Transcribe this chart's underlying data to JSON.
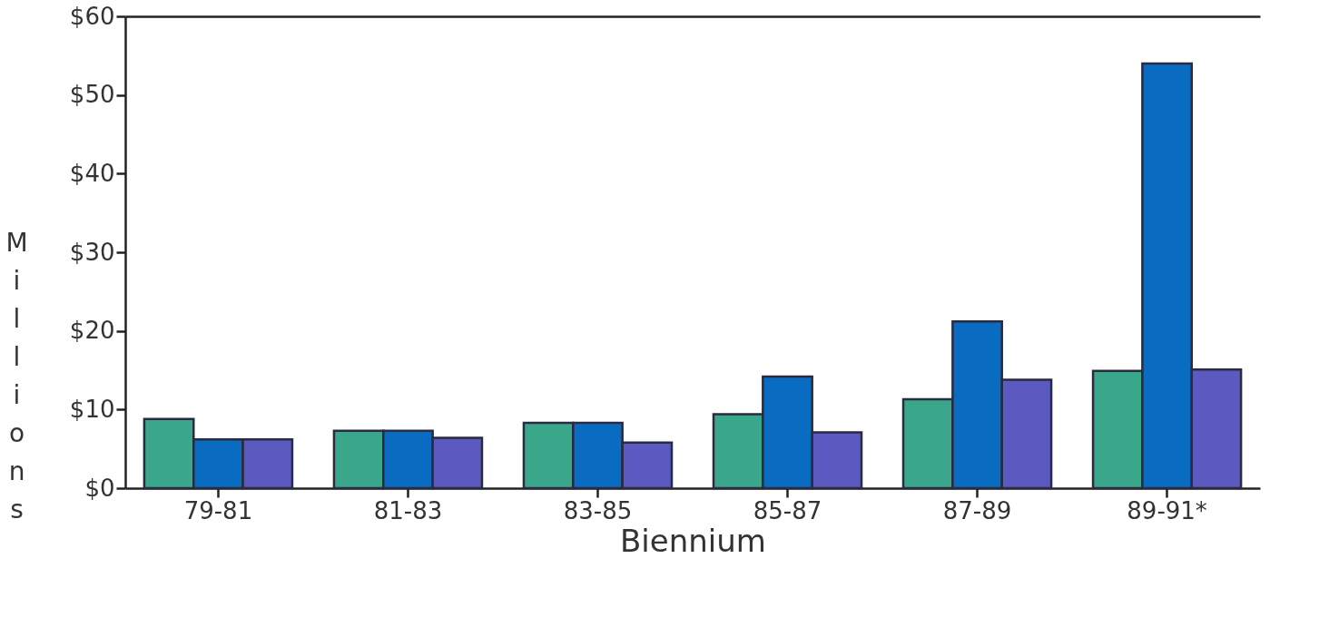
{
  "chart_data": {
    "type": "bar",
    "xlabel": "Biennium",
    "ylabel": "Millions",
    "categories": [
      "79-81",
      "81-83",
      "83-85",
      "85-87",
      "87-89",
      "89-91*"
    ],
    "series": [
      {
        "color": "#3aa78a",
        "values": [
          8.8,
          7.3,
          8.3,
          9.4,
          11.3,
          14.9
        ]
      },
      {
        "color": "#0a6cc0",
        "values": [
          6.2,
          7.3,
          8.3,
          14.2,
          21.2,
          54.0
        ]
      },
      {
        "color": "#5a5ac0",
        "values": [
          6.2,
          6.4,
          5.8,
          7.1,
          13.8,
          15.1
        ]
      }
    ],
    "ylim": [
      0,
      60
    ],
    "yticks": [
      {
        "value": 0,
        "label": "$0"
      },
      {
        "value": 10,
        "label": "$10"
      },
      {
        "value": 20,
        "label": "$20"
      },
      {
        "value": 30,
        "label": "$30"
      },
      {
        "value": 40,
        "label": "$40"
      },
      {
        "value": 50,
        "label": "$50"
      },
      {
        "value": 60,
        "label": "$60"
      }
    ],
    "grid": false,
    "legend": false
  }
}
